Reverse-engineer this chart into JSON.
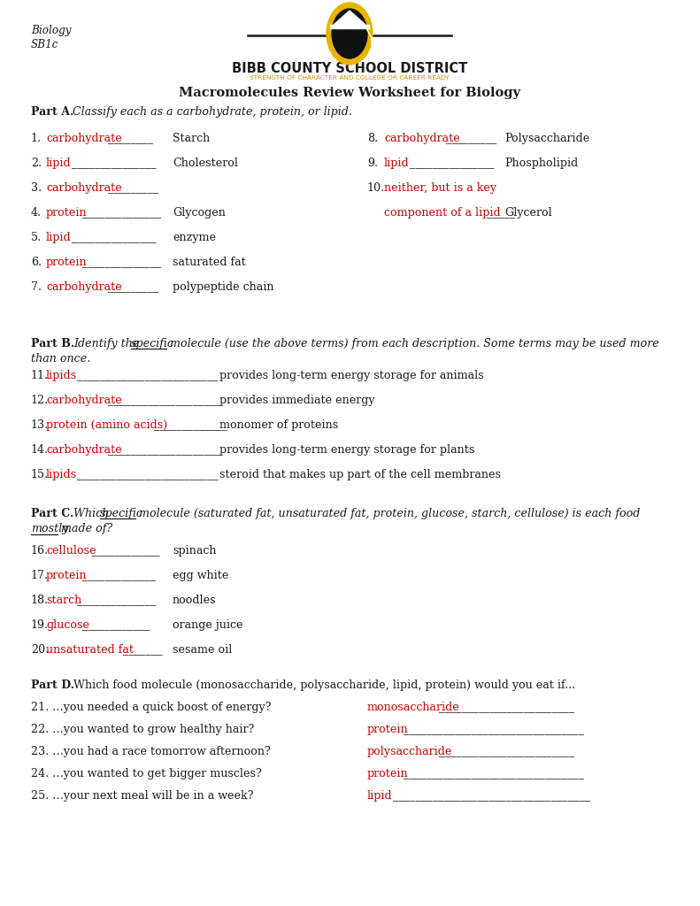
{
  "bg_color": "#ffffff",
  "red": "#cc0000",
  "black": "#1a1a1a",
  "gold": "#c8960c",
  "header_left_line1": "Biology",
  "header_left_line2": "SB1c",
  "school_name": "BIBB COUNTY SCHOOL DISTRICT",
  "school_tagline": "STRENGTH OF CHARACTER AND COLLEGE OR CAREER READY",
  "main_title": "Macromolecules Review Worksheet for Biology",
  "part_a_intro": "Classify each as a carbohydrate, protein, or lipid.",
  "part_b_intro1": "Identify the ",
  "part_b_intro2": "specific",
  "part_b_intro3": " molecule (use the above terms) from each description. Some terms may be used more",
  "part_b_intro4": "than once.",
  "part_c_intro1": "Which ",
  "part_c_intro2": "specific",
  "part_c_intro3": " molecule (saturated fat, unsaturated fat, protein, glucose, starch, cellulose) is each food",
  "part_c_intro4": "mostly",
  "part_c_intro5": " made of?",
  "part_d_intro": "Which food molecule (monosaccharide, polysaccharide, lipid, protein) would you eat if...",
  "items_a_left": [
    {
      "num": "1.",
      "ans": "carbohydrate",
      "blanks": "________",
      "desc": "Starch"
    },
    {
      "num": "2.",
      "ans": "lipid",
      "blanks": "_______________",
      "desc": "Cholesterol"
    },
    {
      "num": "3.",
      "ans": "carbohydrate",
      "blanks": "_________",
      "desc": ""
    },
    {
      "num": "4.",
      "ans": "protein",
      "blanks": "______________",
      "desc": "Glycogen"
    },
    {
      "num": "5.",
      "ans": "lipid",
      "blanks": "_______________",
      "desc": "enzyme"
    },
    {
      "num": "6.",
      "ans": "protein",
      "blanks": "______________",
      "desc": "saturated fat"
    },
    {
      "num": "7.",
      "ans": "carbohydrate",
      "blanks": "_________",
      "desc": "polypeptide chain"
    }
  ],
  "items_a_right": [
    {
      "num": "8.",
      "ans": "carbohydrate",
      "blanks": "_________",
      "desc": "Polysaccharide",
      "row": 0
    },
    {
      "num": "9.",
      "ans": "lipid",
      "blanks": "_______________",
      "desc": "Phospholipid",
      "row": 1
    },
    {
      "num": "10.",
      "ans1": "neither, but is a key",
      "ans2": "component of a lipid",
      "blanks": "_____",
      "desc": "Glycerol",
      "row": 2
    }
  ],
  "items_b": [
    {
      "num": "11.",
      "ans": "lipids",
      "blanks": "_________________________",
      "desc": "provides long-term energy storage for animals"
    },
    {
      "num": "12.",
      "ans": "carbohydrate",
      "blanks": "____________________",
      "desc": "provides immediate energy"
    },
    {
      "num": "13.",
      "ans": "protein (amino acids)",
      "blanks": "_____________",
      "desc": "monomer of proteins"
    },
    {
      "num": "14.",
      "ans": "carbohydrate",
      "blanks": "____________________",
      "desc": "provides long-term energy storage for plants"
    },
    {
      "num": "15.",
      "ans": "lipids",
      "blanks": "_________________________",
      "desc": "steroid that makes up part of the cell membranes"
    }
  ],
  "items_c": [
    {
      "num": "16.",
      "ans": "cellulose",
      "blanks": "____________",
      "desc": "spinach"
    },
    {
      "num": "17.",
      "ans": "protein",
      "blanks": "_____________",
      "desc": "egg white"
    },
    {
      "num": "18.",
      "ans": "starch",
      "blanks": "______________",
      "desc": "noodles"
    },
    {
      "num": "19.",
      "ans": "glucose",
      "blanks": "____________",
      "desc": "orange juice"
    },
    {
      "num": "20.",
      "ans": "unsaturated fat",
      "blanks": "_______",
      "desc": "sesame oil"
    }
  ],
  "items_d_q": [
    "21. …you needed a quick boost of energy?",
    "22. …you wanted to grow healthy hair?",
    "23. …you had a race tomorrow afternoon?",
    "24. …you wanted to get bigger muscles?",
    "25. …your next meal will be in a week?"
  ],
  "items_d_a": [
    "monosaccharide",
    "protein",
    "polysaccharide",
    "protein",
    "lipid"
  ],
  "items_d_blanks": [
    "________________________",
    "________________________________",
    "________________________",
    "________________________________",
    "___________________________________"
  ]
}
